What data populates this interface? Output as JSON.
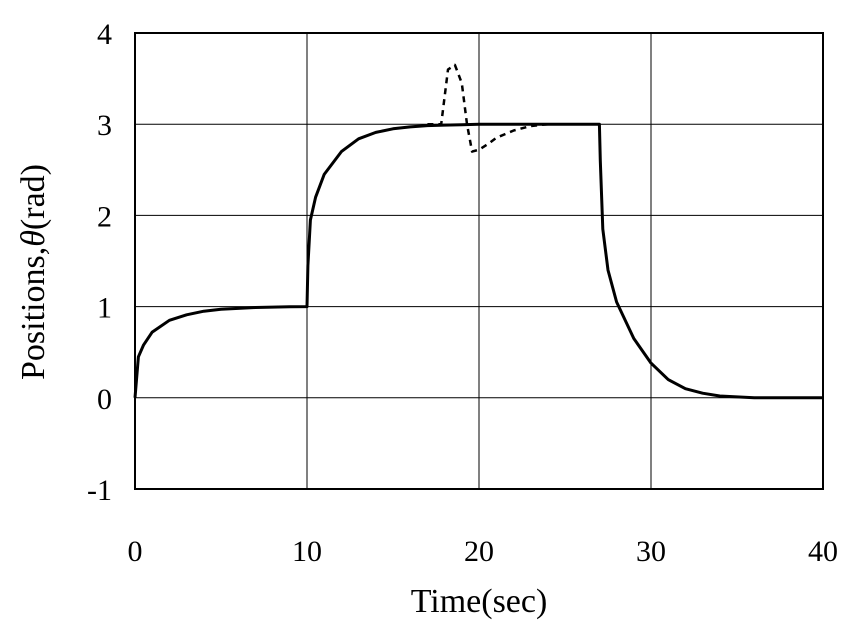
{
  "chart_data": {
    "type": "line",
    "title": "",
    "xlabel": "Time(sec)",
    "ylabel_prefix": "Positions,",
    "ylabel_symbol": "θ",
    "ylabel_unit": "(rad)",
    "xlim": [
      0,
      40
    ],
    "ylim": [
      -1,
      4
    ],
    "xticks": [
      "0",
      "10",
      "20",
      "30",
      "40"
    ],
    "yticks": [
      "-1",
      "0",
      "1",
      "2",
      "3",
      "4"
    ],
    "grid": true,
    "legend": "none",
    "series": [
      {
        "style": "solid",
        "color": "#000000",
        "x": [
          0,
          0.2,
          0.5,
          1,
          2,
          3,
          4,
          5,
          6,
          7,
          8,
          9,
          10,
          10.05,
          10.2,
          10.5,
          11,
          12,
          13,
          14,
          15,
          16,
          17,
          18,
          19,
          20,
          22,
          24,
          26,
          27,
          27.05,
          27.2,
          27.5,
          28,
          29,
          30,
          31,
          32,
          33,
          34,
          35,
          36,
          38,
          40
        ],
        "y": [
          0,
          0.45,
          0.58,
          0.72,
          0.85,
          0.91,
          0.95,
          0.97,
          0.98,
          0.99,
          0.995,
          0.998,
          1.0,
          1.45,
          1.95,
          2.2,
          2.45,
          2.7,
          2.84,
          2.91,
          2.95,
          2.97,
          2.985,
          2.99,
          2.995,
          3.0,
          3.0,
          3.0,
          3.0,
          3.0,
          2.6,
          1.85,
          1.4,
          1.05,
          0.65,
          0.38,
          0.2,
          0.1,
          0.05,
          0.02,
          0.01,
          0.0,
          0.0,
          0.0
        ]
      },
      {
        "style": "dashed",
        "color": "#000000",
        "x": [
          17,
          17.8,
          18.2,
          18.6,
          19.0,
          19.3,
          19.6,
          20.0,
          20.5,
          21,
          22,
          23,
          24,
          25
        ],
        "y": [
          3.0,
          3.0,
          3.6,
          3.65,
          3.45,
          3.0,
          2.7,
          2.72,
          2.78,
          2.85,
          2.93,
          2.98,
          3.0,
          3.0
        ]
      }
    ]
  }
}
